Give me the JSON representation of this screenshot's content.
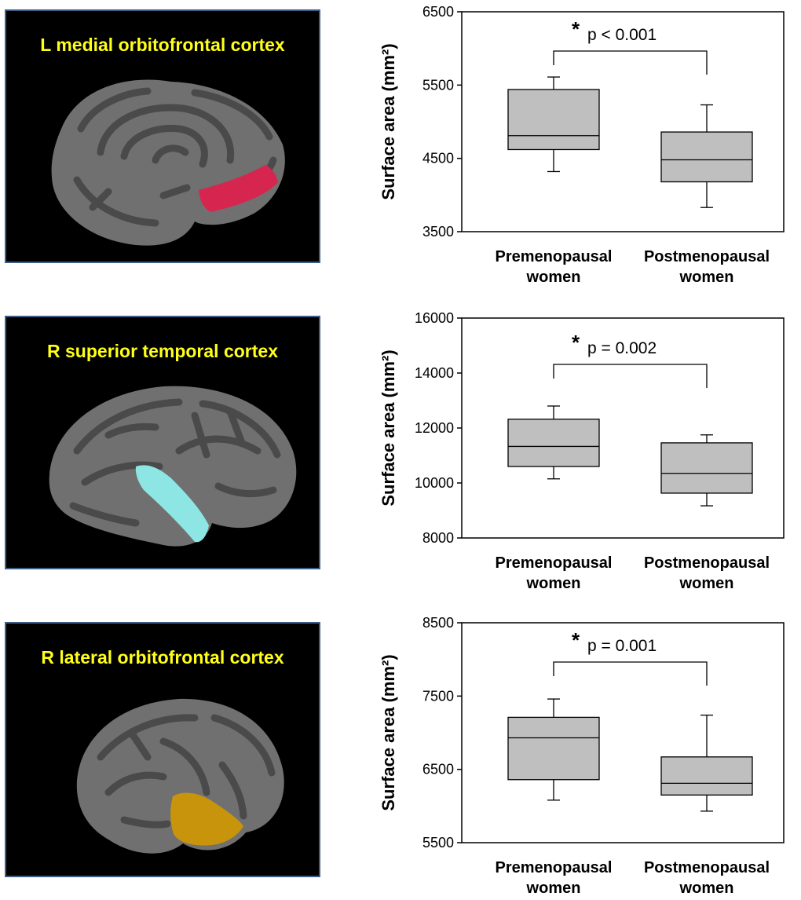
{
  "panels": [
    {
      "title": "L medial orbitofrontal cortex",
      "region_color": "#d6264f",
      "view": "medial"
    },
    {
      "title": "R superior temporal cortex",
      "region_color": "#8ee6e4",
      "view": "lateral"
    },
    {
      "title": "R lateral orbitofrontal cortex",
      "region_color": "#c8940c",
      "view": "frontal"
    }
  ],
  "chart_data": [
    {
      "type": "box",
      "ylabel": "Surface area (mm²)",
      "ylim": [
        3500,
        6500
      ],
      "yticks": [
        "3500",
        "4500",
        "5500",
        "6500"
      ],
      "categories": [
        "Premenopausal women",
        "Postmenopausal women"
      ],
      "boxes": [
        {
          "min": 4320,
          "q1": 4620,
          "median": 4810,
          "q3": 5440,
          "max": 5610
        },
        {
          "min": 3830,
          "q1": 4180,
          "median": 4480,
          "q3": 4860,
          "max": 5230
        }
      ],
      "annotation": {
        "star": "*",
        "text": "p < 0.001"
      }
    },
    {
      "type": "box",
      "ylabel": "Surface area (mm²)",
      "ylim": [
        8000,
        16000
      ],
      "yticks": [
        "8000",
        "10000",
        "12000",
        "14000",
        "16000"
      ],
      "categories": [
        "Premenopausal women",
        "Postmenopausal women"
      ],
      "boxes": [
        {
          "min": 10150,
          "q1": 10600,
          "median": 11330,
          "q3": 12320,
          "max": 12800
        },
        {
          "min": 9170,
          "q1": 9630,
          "median": 10350,
          "q3": 11460,
          "max": 11750
        }
      ],
      "annotation": {
        "star": "*",
        "text": "p = 0.002"
      }
    },
    {
      "type": "box",
      "ylabel": "Surface area (mm²)",
      "ylim": [
        5500,
        8500
      ],
      "yticks": [
        "5500",
        "6500",
        "7500",
        "8500"
      ],
      "categories": [
        "Premenopausal women",
        "Postmenopausal women"
      ],
      "boxes": [
        {
          "min": 6080,
          "q1": 6360,
          "median": 6930,
          "q3": 7210,
          "max": 7460
        },
        {
          "min": 5930,
          "q1": 6150,
          "median": 6310,
          "q3": 6670,
          "max": 7240
        }
      ],
      "annotation": {
        "star": "*",
        "text": "p = 0.001"
      }
    }
  ],
  "colors": {
    "box_fill": "#bfbfbf",
    "title_yellow": "#ffff1a",
    "brain_gray": "#6f6f6f",
    "sulcus_gray": "#4a4a4a"
  }
}
